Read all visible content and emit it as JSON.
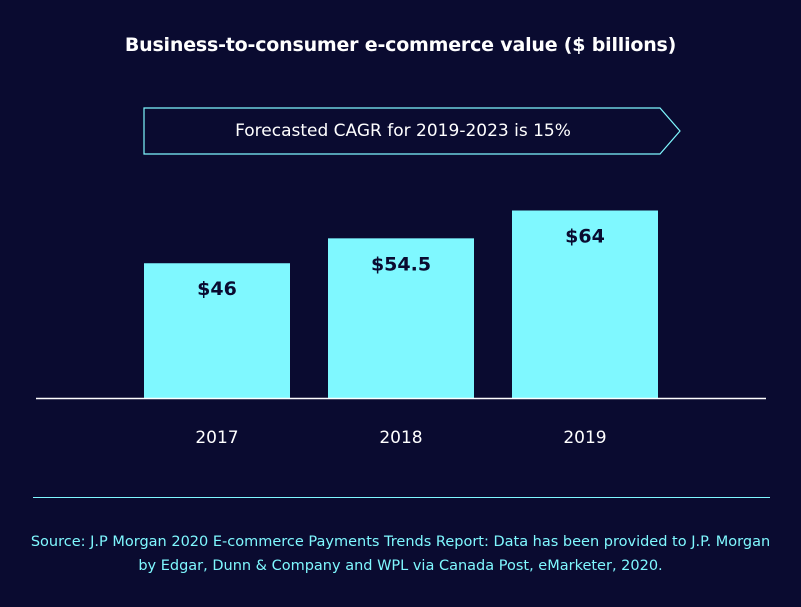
{
  "chart_data": {
    "type": "bar",
    "title": "Business-to-consumer e-commerce value ($ billions)",
    "annotation": "Forecasted CAGR for 2019-2023 is 15%",
    "categories": [
      "2017",
      "2018",
      "2019"
    ],
    "values": [
      46,
      54.5,
      64
    ],
    "data_labels": [
      "$46",
      "$54.5",
      "$64"
    ],
    "xlabel": "",
    "ylabel": "",
    "ylim": [
      0,
      71
    ],
    "grid": false,
    "colors": {
      "bar": "#7ff8ff",
      "background": "#0a0b30",
      "text": "#ffffff",
      "accent": "#7ff8ff"
    }
  },
  "source": "Source: J.P Morgan 2020 E-commerce Payments Trends Report: Data has been provided to J.P. Morgan by Edgar, Dunn & Company and WPL via Canada Post, eMarketer, 2020."
}
